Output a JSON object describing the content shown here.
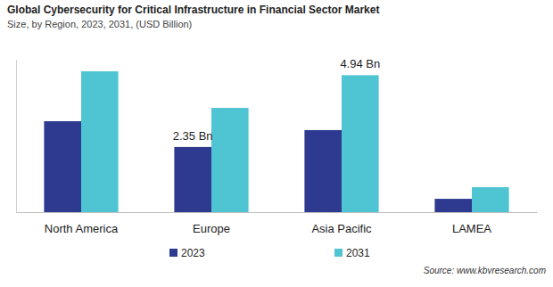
{
  "chart_data": {
    "type": "bar",
    "title": "Global Cybersecurity for Critical Infrastructure in Financial Sector Market",
    "subtitle": "Size, by Region, 2023, 2031, (USD Billion)",
    "source": "Source: www.kbvresearch.com",
    "categories": [
      "North America",
      "Europe",
      "Asia Pacific",
      "LAMEA"
    ],
    "series": [
      {
        "name": "2023",
        "color": "#2e3a8f",
        "values": [
          3.28,
          2.35,
          2.96,
          0.48
        ],
        "value_labels": [
          null,
          "2.35 Bn",
          null,
          null
        ]
      },
      {
        "name": "2031",
        "color": "#4fc4d2",
        "values": [
          5.08,
          3.76,
          4.94,
          0.9
        ],
        "value_labels": [
          null,
          null,
          "4.94 Bn",
          null
        ]
      }
    ],
    "ylim": [
      0,
      5.5
    ],
    "data_labels": true,
    "tick_labels": "x",
    "grid": false,
    "legend": "bottom"
  }
}
